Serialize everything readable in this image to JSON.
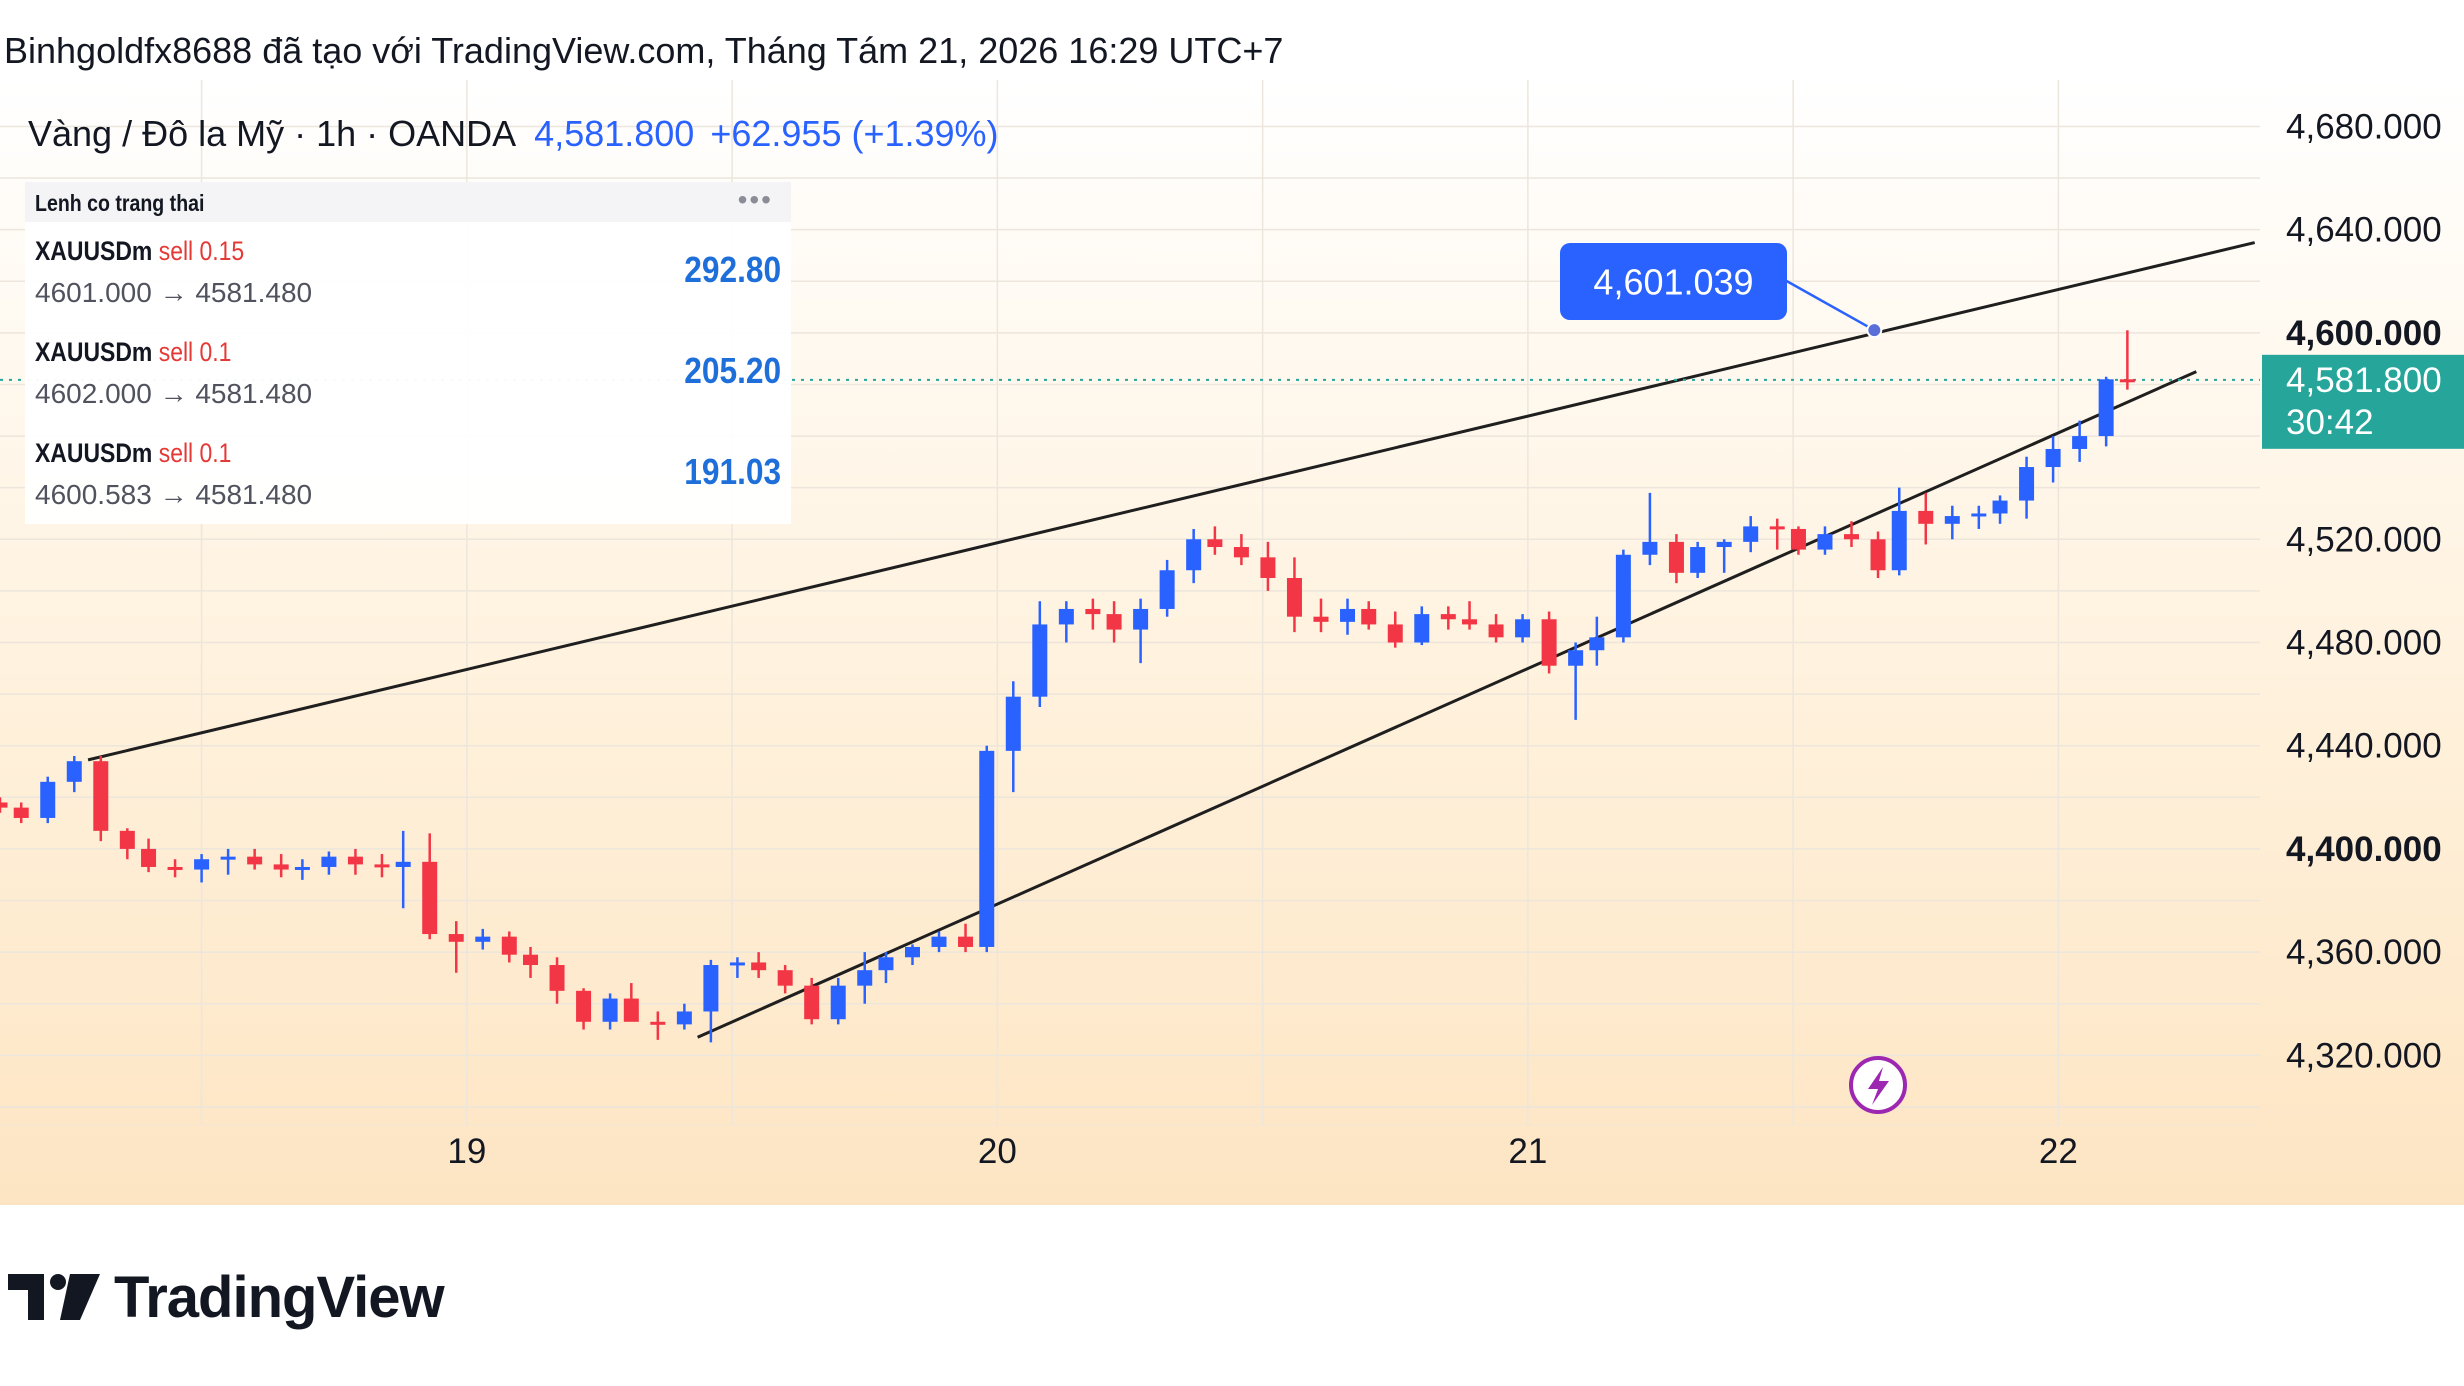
{
  "header": {
    "attribution": "Binhgoldfx8688 đã tạo với TradingView.com, Tháng Tám 21, 2026 16:29 UTC+7"
  },
  "symbol_bar": {
    "name": "Vàng / Đô la Mỹ · 1h · OANDA",
    "price": "4,581.800",
    "change": "+62.955 (+1.39%)"
  },
  "orders_panel": {
    "title": "Lenh co trang thai",
    "menu_icon": "more-dots-icon",
    "orders": [
      {
        "symbol": "XAUUSDm",
        "side": "sell 0.15",
        "prices": "4601.000 → 4581.480",
        "pnl": "292.80"
      },
      {
        "symbol": "XAUUSDm",
        "side": "sell 0.1",
        "prices": "4602.000 → 4581.480",
        "pnl": "205.20"
      },
      {
        "symbol": "XAUUSDm",
        "side": "sell 0.1",
        "prices": "4600.583 → 4581.480",
        "pnl": "191.03"
      }
    ]
  },
  "price_tag": {
    "price": "4,581.800",
    "countdown": "30:42"
  },
  "callout": {
    "label": "4,601.039",
    "price": 4601.039,
    "time": 21.653
  },
  "lightning_icon": "lightning-bolt-icon",
  "logo": {
    "text": "TradingView",
    "icon": "tradingview-logo-icon"
  },
  "colors": {
    "up": "#2962ff",
    "down": "#f23645",
    "price_tag": "#26a69a",
    "callout": "#2962ff",
    "lightning": "#9c27b0",
    "pnl": "#1e6fd9",
    "sell": "#e53935"
  },
  "chart_data": {
    "type": "candlestick",
    "timeframe": "1h",
    "x_unit": "days of month (August 2026)",
    "x_ticks": [
      "19",
      "20",
      "21",
      "22"
    ],
    "xlim": [
      18.12,
      22.38
    ],
    "y_ticks": [
      {
        "value": 4680,
        "label": "4,680.000",
        "bold": false
      },
      {
        "value": 4640,
        "label": "4,640.000",
        "bold": false
      },
      {
        "value": 4600,
        "label": "4,600.000",
        "bold": true
      },
      {
        "value": 4520,
        "label": "4,520.000",
        "bold": false
      },
      {
        "value": 4480,
        "label": "4,480.000",
        "bold": false
      },
      {
        "value": 4440,
        "label": "4,440.000",
        "bold": false
      },
      {
        "value": 4400,
        "label": "4,400.000",
        "bold": true
      },
      {
        "value": 4360,
        "label": "4,360.000",
        "bold": false
      },
      {
        "value": 4320,
        "label": "4,320.000",
        "bold": false
      }
    ],
    "ylim": [
      4293,
      4698
    ],
    "current_price": 4581.8,
    "trendlines": [
      {
        "name": "upper",
        "from": [
          18.286,
          4434.5
        ],
        "to": [
          22.37,
          4635
        ]
      },
      {
        "name": "lower",
        "from": [
          19.435,
          4327
        ],
        "to": [
          22.26,
          4585
        ]
      }
    ],
    "candles": [
      {
        "t": 18.12,
        "o": 4418,
        "h": 4420,
        "l": 4414,
        "c": 4416
      },
      {
        "t": 18.16,
        "o": 4416,
        "h": 4418,
        "l": 4410,
        "c": 4412
      },
      {
        "t": 18.21,
        "o": 4412,
        "h": 4428,
        "l": 4410,
        "c": 4426
      },
      {
        "t": 18.26,
        "o": 4426,
        "h": 4436,
        "l": 4422,
        "c": 4434
      },
      {
        "t": 18.31,
        "o": 4434,
        "h": 4436,
        "l": 4403,
        "c": 4407
      },
      {
        "t": 18.36,
        "o": 4407,
        "h": 4408,
        "l": 4396,
        "c": 4400
      },
      {
        "t": 18.4,
        "o": 4400,
        "h": 4404,
        "l": 4391,
        "c": 4393
      },
      {
        "t": 18.45,
        "o": 4393,
        "h": 4396,
        "l": 4389,
        "c": 4392
      },
      {
        "t": 18.5,
        "o": 4392,
        "h": 4398,
        "l": 4387,
        "c": 4396
      },
      {
        "t": 18.55,
        "o": 4396,
        "h": 4400,
        "l": 4390,
        "c": 4397
      },
      {
        "t": 18.6,
        "o": 4397,
        "h": 4400,
        "l": 4392,
        "c": 4394
      },
      {
        "t": 18.65,
        "o": 4394,
        "h": 4398,
        "l": 4389,
        "c": 4392
      },
      {
        "t": 18.69,
        "o": 4392,
        "h": 4396,
        "l": 4388,
        "c": 4393
      },
      {
        "t": 18.74,
        "o": 4393,
        "h": 4399,
        "l": 4390,
        "c": 4397
      },
      {
        "t": 18.79,
        "o": 4397,
        "h": 4400,
        "l": 4390,
        "c": 4394
      },
      {
        "t": 18.84,
        "o": 4394,
        "h": 4398,
        "l": 4389,
        "c": 4393
      },
      {
        "t": 18.88,
        "o": 4393,
        "h": 4407,
        "l": 4377,
        "c": 4395
      },
      {
        "t": 18.93,
        "o": 4395,
        "h": 4406,
        "l": 4365,
        "c": 4367
      },
      {
        "t": 18.98,
        "o": 4367,
        "h": 4372,
        "l": 4352,
        "c": 4364
      },
      {
        "t": 19.03,
        "o": 4364,
        "h": 4369,
        "l": 4361,
        "c": 4366
      },
      {
        "t": 19.08,
        "o": 4366,
        "h": 4368,
        "l": 4356,
        "c": 4359
      },
      {
        "t": 19.12,
        "o": 4359,
        "h": 4362,
        "l": 4350,
        "c": 4355
      },
      {
        "t": 19.17,
        "o": 4355,
        "h": 4358,
        "l": 4340,
        "c": 4345
      },
      {
        "t": 19.22,
        "o": 4345,
        "h": 4346,
        "l": 4330,
        "c": 4333
      },
      {
        "t": 19.27,
        "o": 4333,
        "h": 4344,
        "l": 4330,
        "c": 4342
      },
      {
        "t": 19.31,
        "o": 4342,
        "h": 4348,
        "l": 4337,
        "c": 4333
      },
      {
        "t": 19.36,
        "o": 4333,
        "h": 4337,
        "l": 4326,
        "c": 4332
      },
      {
        "t": 19.41,
        "o": 4332,
        "h": 4340,
        "l": 4330,
        "c": 4337
      },
      {
        "t": 19.46,
        "o": 4337,
        "h": 4357,
        "l": 4325,
        "c": 4355
      },
      {
        "t": 19.51,
        "o": 4355,
        "h": 4358,
        "l": 4350,
        "c": 4356
      },
      {
        "t": 19.55,
        "o": 4356,
        "h": 4360,
        "l": 4350,
        "c": 4353
      },
      {
        "t": 19.6,
        "o": 4353,
        "h": 4355,
        "l": 4344,
        "c": 4347
      },
      {
        "t": 19.65,
        "o": 4347,
        "h": 4350,
        "l": 4332,
        "c": 4334
      },
      {
        "t": 19.7,
        "o": 4334,
        "h": 4350,
        "l": 4332,
        "c": 4347
      },
      {
        "t": 19.75,
        "o": 4347,
        "h": 4360,
        "l": 4340,
        "c": 4353
      },
      {
        "t": 19.79,
        "o": 4353,
        "h": 4360,
        "l": 4348,
        "c": 4358
      },
      {
        "t": 19.84,
        "o": 4358,
        "h": 4363,
        "l": 4355,
        "c": 4362
      },
      {
        "t": 19.89,
        "o": 4362,
        "h": 4368,
        "l": 4360,
        "c": 4366
      },
      {
        "t": 19.94,
        "o": 4366,
        "h": 4371,
        "l": 4360,
        "c": 4362
      },
      {
        "t": 19.98,
        "o": 4362,
        "h": 4440,
        "l": 4360,
        "c": 4438
      },
      {
        "t": 20.03,
        "o": 4438,
        "h": 4465,
        "l": 4422,
        "c": 4459
      },
      {
        "t": 20.08,
        "o": 4459,
        "h": 4496,
        "l": 4455,
        "c": 4487
      },
      {
        "t": 20.13,
        "o": 4487,
        "h": 4496,
        "l": 4480,
        "c": 4493
      },
      {
        "t": 20.18,
        "o": 4493,
        "h": 4497,
        "l": 4485,
        "c": 4491
      },
      {
        "t": 20.22,
        "o": 4491,
        "h": 4496,
        "l": 4480,
        "c": 4485
      },
      {
        "t": 20.27,
        "o": 4485,
        "h": 4497,
        "l": 4472,
        "c": 4493
      },
      {
        "t": 20.32,
        "o": 4493,
        "h": 4512,
        "l": 4490,
        "c": 4508
      },
      {
        "t": 20.37,
        "o": 4508,
        "h": 4524,
        "l": 4503,
        "c": 4520
      },
      {
        "t": 20.41,
        "o": 4520,
        "h": 4525,
        "l": 4514,
        "c": 4517
      },
      {
        "t": 20.46,
        "o": 4517,
        "h": 4522,
        "l": 4510,
        "c": 4513
      },
      {
        "t": 20.51,
        "o": 4513,
        "h": 4519,
        "l": 4500,
        "c": 4505
      },
      {
        "t": 20.56,
        "o": 4505,
        "h": 4513,
        "l": 4484,
        "c": 4490
      },
      {
        "t": 20.61,
        "o": 4490,
        "h": 4497,
        "l": 4484,
        "c": 4488
      },
      {
        "t": 20.66,
        "o": 4488,
        "h": 4497,
        "l": 4483,
        "c": 4493
      },
      {
        "t": 20.7,
        "o": 4493,
        "h": 4496,
        "l": 4485,
        "c": 4487
      },
      {
        "t": 20.75,
        "o": 4487,
        "h": 4492,
        "l": 4478,
        "c": 4480
      },
      {
        "t": 20.8,
        "o": 4480,
        "h": 4494,
        "l": 4479,
        "c": 4491
      },
      {
        "t": 20.85,
        "o": 4491,
        "h": 4494,
        "l": 4485,
        "c": 4489
      },
      {
        "t": 20.89,
        "o": 4489,
        "h": 4496,
        "l": 4485,
        "c": 4487
      },
      {
        "t": 20.94,
        "o": 4487,
        "h": 4491,
        "l": 4480,
        "c": 4482
      },
      {
        "t": 20.99,
        "o": 4482,
        "h": 4491,
        "l": 4480,
        "c": 4489
      },
      {
        "t": 21.04,
        "o": 4489,
        "h": 4492,
        "l": 4468,
        "c": 4471
      },
      {
        "t": 21.09,
        "o": 4471,
        "h": 4480,
        "l": 4450,
        "c": 4477
      },
      {
        "t": 21.13,
        "o": 4477,
        "h": 4490,
        "l": 4471,
        "c": 4482
      },
      {
        "t": 21.18,
        "o": 4482,
        "h": 4516,
        "l": 4480,
        "c": 4514
      },
      {
        "t": 21.23,
        "o": 4514,
        "h": 4538,
        "l": 4510,
        "c": 4519
      },
      {
        "t": 21.28,
        "o": 4519,
        "h": 4522,
        "l": 4503,
        "c": 4507
      },
      {
        "t": 21.32,
        "o": 4507,
        "h": 4519,
        "l": 4505,
        "c": 4517
      },
      {
        "t": 21.37,
        "o": 4517,
        "h": 4520,
        "l": 4507,
        "c": 4519
      },
      {
        "t": 21.42,
        "o": 4519,
        "h": 4529,
        "l": 4515,
        "c": 4525
      },
      {
        "t": 21.47,
        "o": 4525,
        "h": 4528,
        "l": 4516,
        "c": 4524
      },
      {
        "t": 21.51,
        "o": 4524,
        "h": 4525,
        "l": 4514,
        "c": 4516
      },
      {
        "t": 21.56,
        "o": 4516,
        "h": 4525,
        "l": 4514,
        "c": 4522
      },
      {
        "t": 21.61,
        "o": 4522,
        "h": 4527,
        "l": 4517,
        "c": 4520
      },
      {
        "t": 21.66,
        "o": 4520,
        "h": 4523,
        "l": 4505,
        "c": 4508
      },
      {
        "t": 21.7,
        "o": 4508,
        "h": 4540,
        "l": 4506,
        "c": 4531
      },
      {
        "t": 21.75,
        "o": 4531,
        "h": 4538,
        "l": 4518,
        "c": 4526
      },
      {
        "t": 21.8,
        "o": 4526,
        "h": 4533,
        "l": 4520,
        "c": 4529
      },
      {
        "t": 21.85,
        "o": 4529,
        "h": 4533,
        "l": 4524,
        "c": 4530
      },
      {
        "t": 21.89,
        "o": 4530,
        "h": 4537,
        "l": 4526,
        "c": 4535
      },
      {
        "t": 21.94,
        "o": 4535,
        "h": 4552,
        "l": 4528,
        "c": 4548
      },
      {
        "t": 21.99,
        "o": 4548,
        "h": 4560,
        "l": 4542,
        "c": 4555
      },
      {
        "t": 22.04,
        "o": 4555,
        "h": 4566,
        "l": 4550,
        "c": 4560
      },
      {
        "t": 22.09,
        "o": 4560,
        "h": 4583,
        "l": 4556,
        "c": 4582
      },
      {
        "t": 22.13,
        "o": 4582,
        "h": 4601,
        "l": 4578,
        "c": 4581.8
      }
    ]
  }
}
